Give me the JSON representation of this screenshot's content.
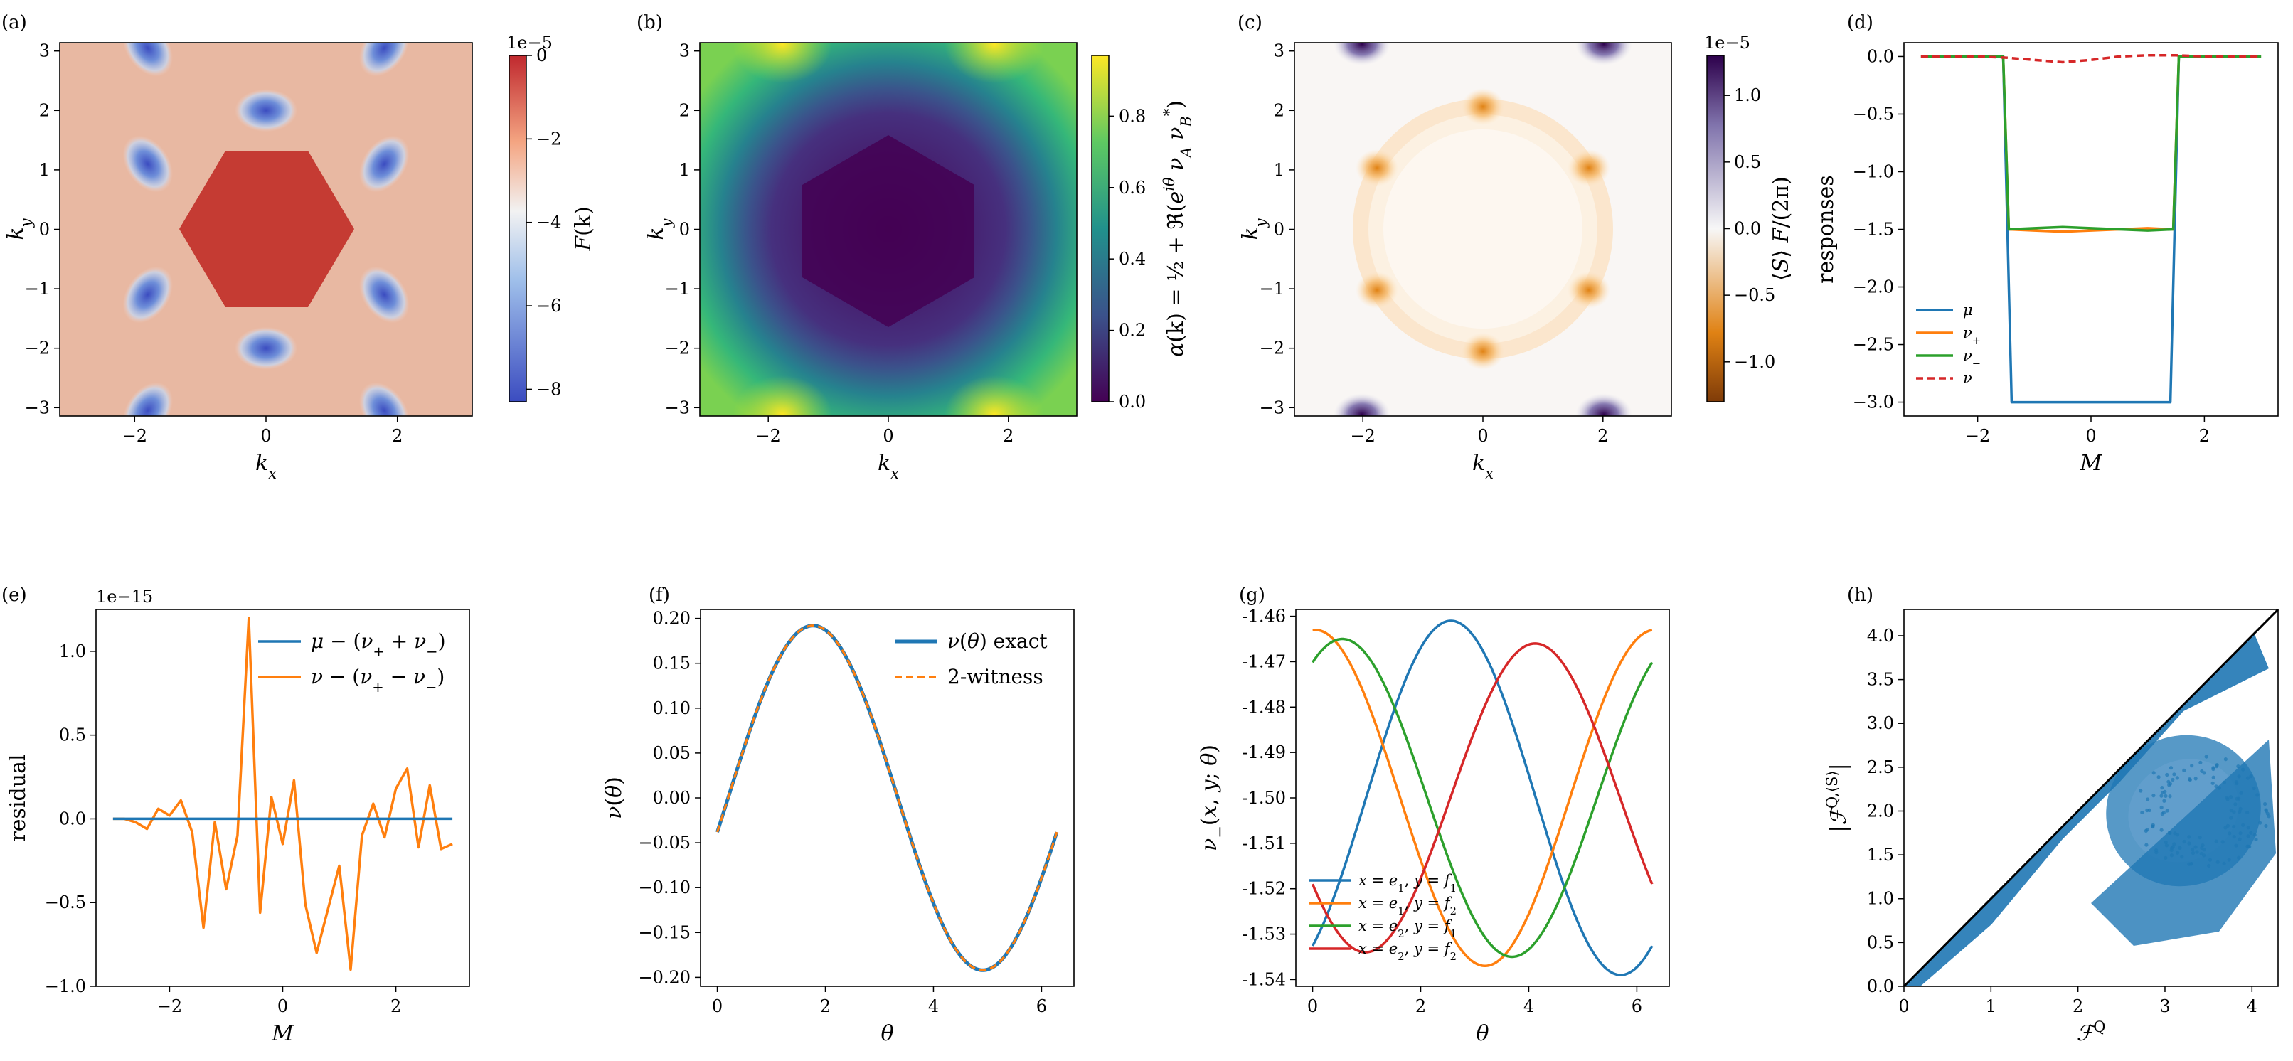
{
  "chart_data": [
    {
      "panel": "(a)",
      "type": "heatmap",
      "title": "",
      "xlabel": "k_x",
      "ylabel": "k_y",
      "xlim": [
        -3.14,
        3.14
      ],
      "ylim": [
        -3.14,
        3.14
      ],
      "xticks": [
        -2,
        0,
        2
      ],
      "yticks": [
        -3,
        -2,
        -1,
        0,
        1,
        2,
        3
      ],
      "colormap": "RdBu_r",
      "colorbar": {
        "label": "F(k)",
        "scale": "1e−5",
        "range": [
          -8.3,
          0
        ],
        "ticks": [
          {
            "v": 0,
            "t": "0"
          },
          {
            "v": -2,
            "t": "−2"
          },
          {
            "v": -4,
            "t": "−4"
          },
          {
            "v": -6,
            "t": "−6"
          },
          {
            "v": -8,
            "t": "−8"
          }
        ]
      },
      "minima": [
        [
          -1.8,
          3.05
        ],
        [
          1.8,
          3.05
        ],
        [
          0,
          2.0
        ],
        [
          -1.8,
          1.1
        ],
        [
          1.8,
          1.1
        ],
        [
          -1.8,
          -1.1
        ],
        [
          1.8,
          -1.1
        ],
        [
          0,
          -2.0
        ],
        [
          -1.8,
          -3.05
        ],
        [
          1.8,
          -3.05
        ]
      ]
    },
    {
      "panel": "(b)",
      "type": "heatmap",
      "title": "",
      "xlabel": "k_x",
      "ylabel": "k_y",
      "xlim": [
        -3.14,
        3.14
      ],
      "ylim": [
        -3.14,
        3.14
      ],
      "xticks": [
        -2,
        0,
        2
      ],
      "yticks": [
        -3,
        -2,
        -1,
        0,
        1,
        2,
        3
      ],
      "colormap": "viridis",
      "colorbar": {
        "label": "α(k) = ½ + ℜ(e^{iθ} ν_A ν_B*)",
        "range": [
          0,
          0.97
        ],
        "ticks": [
          {
            "v": 0,
            "t": "0.0"
          },
          {
            "v": 0.2,
            "t": "0.2"
          },
          {
            "v": 0.4,
            "t": "0.4"
          },
          {
            "v": 0.6,
            "t": "0.6"
          },
          {
            "v": 0.8,
            "t": "0.8"
          }
        ]
      }
    },
    {
      "panel": "(c)",
      "type": "heatmap",
      "title": "",
      "xlabel": "k_x",
      "ylabel": "k_y",
      "xlim": [
        -3.14,
        3.14
      ],
      "ylim": [
        -3.14,
        3.14
      ],
      "xticks": [
        -2,
        0,
        2
      ],
      "yticks": [
        -3,
        -2,
        -1,
        0,
        1,
        2,
        3
      ],
      "colormap": "PuOr",
      "colorbar": {
        "label": "⟨S⟩ F/(2π)",
        "scale": "1e−5",
        "range": [
          -1.3,
          1.3
        ],
        "ticks": [
          {
            "v": 1.0,
            "t": "1.0"
          },
          {
            "v": 0.5,
            "t": "0.5"
          },
          {
            "v": 0,
            "t": "0.0"
          },
          {
            "v": -0.5,
            "t": "−0.5"
          },
          {
            "v": -1.0,
            "t": "−1.0"
          }
        ]
      },
      "ring_radius": 2.0
    },
    {
      "panel": "(d)",
      "type": "line",
      "title": "",
      "xlabel": "M",
      "ylabel": "responses",
      "xlim": [
        -3.3,
        3.3
      ],
      "ylim": [
        -3.12,
        0.12
      ],
      "xticks": [
        {
          "v": -2,
          "t": "−2"
        },
        {
          "v": 0,
          "t": "0"
        },
        {
          "v": 2,
          "t": "2"
        }
      ],
      "yticks": [
        {
          "v": 0,
          "t": "0.0"
        },
        {
          "v": -0.5,
          "t": "−0.5"
        },
        {
          "v": -1.0,
          "t": "−1.0"
        },
        {
          "v": -1.5,
          "t": "−1.5"
        },
        {
          "v": -2.0,
          "t": "−2.0"
        },
        {
          "v": -2.5,
          "t": "−2.5"
        },
        {
          "v": -3.0,
          "t": "−3.0"
        }
      ],
      "legend": {
        "position": "lower-left"
      },
      "series": [
        {
          "name": "μ",
          "color": "#1f77b4",
          "dash": "",
          "x": [
            -3,
            -1.6,
            -1.55,
            -1.4,
            1.4,
            1.55,
            1.6,
            3
          ],
          "y": [
            0,
            0,
            0,
            -3,
            -3,
            0,
            0,
            0
          ]
        },
        {
          "name": "ν₊",
          "color": "#ff7f0e",
          "dash": "",
          "x": [
            -3,
            -1.55,
            -1.45,
            -1.0,
            -0.5,
            0,
            0.5,
            1.0,
            1.45,
            1.55,
            3
          ],
          "y": [
            0,
            0,
            -1.5,
            -1.51,
            -1.52,
            -1.51,
            -1.5,
            -1.49,
            -1.5,
            0,
            0
          ]
        },
        {
          "name": "ν₋",
          "color": "#2ca02c",
          "dash": "",
          "x": [
            -3,
            -1.55,
            -1.45,
            -1.0,
            -0.5,
            0,
            0.5,
            1.0,
            1.45,
            1.55,
            3
          ],
          "y": [
            0,
            0,
            -1.5,
            -1.49,
            -1.48,
            -1.49,
            -1.5,
            -1.51,
            -1.5,
            0,
            0
          ]
        },
        {
          "name": "ν",
          "color": "#d62728",
          "dash": "10,6",
          "x": [
            -3,
            -2,
            -1.5,
            -1,
            -0.5,
            0,
            0.5,
            1,
            1.5,
            2,
            3
          ],
          "y": [
            0,
            0,
            -0.01,
            -0.03,
            -0.05,
            -0.03,
            0,
            0.01,
            0.01,
            0,
            0
          ]
        }
      ]
    },
    {
      "panel": "(e)",
      "type": "line",
      "title": "",
      "xlabel": "M",
      "ylabel": "residual",
      "scale": "1e−15",
      "xlim": [
        -3.3,
        3.3
      ],
      "ylim": [
        -1.0,
        1.25
      ],
      "xticks": [
        {
          "v": -2,
          "t": "−2"
        },
        {
          "v": 0,
          "t": "0"
        },
        {
          "v": 2,
          "t": "2"
        }
      ],
      "yticks": [
        {
          "v": 1.0,
          "t": "1.0"
        },
        {
          "v": 0.5,
          "t": "0.5"
        },
        {
          "v": 0,
          "t": "0.0"
        },
        {
          "v": -0.5,
          "t": "−0.5"
        },
        {
          "v": -1.0,
          "t": "−1.0"
        }
      ],
      "legend": {
        "position": "top-right"
      },
      "series": [
        {
          "name": "μ − (ν₊ + ν₋)",
          "color": "#1f77b4",
          "dash": "",
          "x": [
            -3,
            3
          ],
          "y": [
            0,
            0
          ]
        },
        {
          "name": "ν − (ν₊ − ν₋)",
          "color": "#ff7f0e",
          "dash": "",
          "x": [
            -3.0,
            -2.8,
            -2.6,
            -2.4,
            -2.2,
            -2.0,
            -1.8,
            -1.6,
            -1.4,
            -1.2,
            -1.0,
            -0.8,
            -0.6,
            -0.4,
            -0.2,
            0.0,
            0.2,
            0.4,
            0.6,
            0.8,
            1.0,
            1.2,
            1.4,
            1.6,
            1.8,
            2.0,
            2.2,
            2.4,
            2.6,
            2.8,
            3.0
          ],
          "y": [
            0.0,
            0.0,
            -0.02,
            -0.06,
            0.06,
            0.02,
            0.11,
            -0.08,
            -0.65,
            -0.02,
            -0.42,
            -0.1,
            1.2,
            -0.56,
            0.13,
            -0.15,
            0.23,
            -0.51,
            -0.8,
            -0.54,
            -0.28,
            -0.9,
            -0.1,
            0.09,
            -0.11,
            0.18,
            0.3,
            -0.17,
            0.2,
            -0.18,
            -0.15
          ]
        }
      ]
    },
    {
      "panel": "(f)",
      "type": "line",
      "title": "",
      "xlabel": "θ",
      "ylabel": "ν(θ)",
      "xlim": [
        -0.31,
        6.6
      ],
      "ylim": [
        -0.21,
        0.21
      ],
      "xticks": [
        {
          "v": 0,
          "t": "0"
        },
        {
          "v": 2,
          "t": "2"
        },
        {
          "v": 4,
          "t": "4"
        },
        {
          "v": 6,
          "t": "6"
        }
      ],
      "yticks": [
        {
          "v": 0.2,
          "t": "0.20"
        },
        {
          "v": 0.15,
          "t": "0.15"
        },
        {
          "v": 0.1,
          "t": "0.10"
        },
        {
          "v": 0.05,
          "t": "0.05"
        },
        {
          "v": 0,
          "t": "0.00"
        },
        {
          "v": -0.05,
          "t": "−0.05"
        },
        {
          "v": -0.1,
          "t": "−0.10"
        },
        {
          "v": -0.15,
          "t": "−0.15"
        },
        {
          "v": -0.2,
          "t": "−0.20"
        }
      ],
      "legend": {
        "position": "top-right"
      },
      "function": {
        "form": "amplitude * sin(theta - phase)",
        "amplitude": 0.192,
        "phase": 0.2,
        "theta_range": [
          0,
          6.2832
        ]
      },
      "series": [
        {
          "name": "ν(θ) exact",
          "color": "#1f77b4",
          "dash": ""
        },
        {
          "name": "2-witness",
          "color": "#ff7f0e",
          "dash": "10,6"
        }
      ]
    },
    {
      "panel": "(g)",
      "type": "line",
      "title": "",
      "xlabel": "θ",
      "ylabel": "ν₋(x, y; θ)",
      "xlim": [
        -0.31,
        6.6
      ],
      "ylim": [
        -1.5415,
        -1.4585
      ],
      "xticks": [
        {
          "v": 0,
          "t": "0"
        },
        {
          "v": 2,
          "t": "2"
        },
        {
          "v": 4,
          "t": "4"
        },
        {
          "v": 6,
          "t": "6"
        }
      ],
      "yticks": [
        {
          "v": -1.46,
          "t": "-1.46"
        },
        {
          "v": -1.47,
          "t": "-1.47"
        },
        {
          "v": -1.48,
          "t": "-1.48"
        },
        {
          "v": -1.49,
          "t": "-1.49"
        },
        {
          "v": -1.5,
          "t": "-1.50"
        },
        {
          "v": -1.51,
          "t": "-1.51"
        },
        {
          "v": -1.52,
          "t": "-1.52"
        },
        {
          "v": -1.53,
          "t": "-1.53"
        },
        {
          "v": -1.54,
          "t": "-1.54"
        }
      ],
      "legend": {
        "position": "lower-left"
      },
      "function": {
        "form": "center + amp * cos(theta - peak)",
        "theta_range": [
          0,
          6.2832
        ]
      },
      "series": [
        {
          "name": "x = e₁, y = f₁",
          "color": "#1f77b4",
          "center": -1.5,
          "amp": 0.039,
          "peak": 2.56
        },
        {
          "name": "x = e₁, y = f₂",
          "color": "#ff7f0e",
          "center": -1.5,
          "amp": 0.037,
          "peak": 0.05
        },
        {
          "name": "x = e₂, y = f₁",
          "color": "#2ca02c",
          "center": -1.5,
          "amp": 0.035,
          "peak": 0.55
        },
        {
          "name": "x = e₂, y = f₂",
          "color": "#d62728",
          "center": -1.5,
          "amp": 0.034,
          "peak": 4.12
        }
      ]
    },
    {
      "panel": "(h)",
      "type": "scatter",
      "title": "",
      "xlabel": "ℱ^Q",
      "ylabel": "|ℱ^{Q,⟨S⟩}|",
      "xlim": [
        0,
        4.3
      ],
      "ylim": [
        0,
        4.3
      ],
      "xticks": [
        {
          "v": 0,
          "t": "0"
        },
        {
          "v": 1,
          "t": "1"
        },
        {
          "v": 2,
          "t": "2"
        },
        {
          "v": 3,
          "t": "3"
        },
        {
          "v": 4,
          "t": "4"
        }
      ],
      "yticks": [
        {
          "v": 0,
          "t": "0.0"
        },
        {
          "v": 0.5,
          "t": "0.5"
        },
        {
          "v": 1.0,
          "t": "1.0"
        },
        {
          "v": 1.5,
          "t": "1.5"
        },
        {
          "v": 2.0,
          "t": "2.0"
        },
        {
          "v": 2.5,
          "t": "2.5"
        },
        {
          "v": 3.0,
          "t": "3.0"
        },
        {
          "v": 3.5,
          "t": "3.5"
        },
        {
          "v": 4.0,
          "t": "4.0"
        }
      ],
      "reference_line": {
        "label": "y = x",
        "color": "#000000"
      },
      "point_color": "#1f77b4",
      "region": "points fill the wedge below y = x up to about 4.0, plus an elliptical cloud centered near (3.4, 2.0)"
    }
  ],
  "panel_labels": [
    "(a)",
    "(b)",
    "(c)",
    "(d)",
    "(e)",
    "(f)",
    "(g)",
    "(h)"
  ]
}
